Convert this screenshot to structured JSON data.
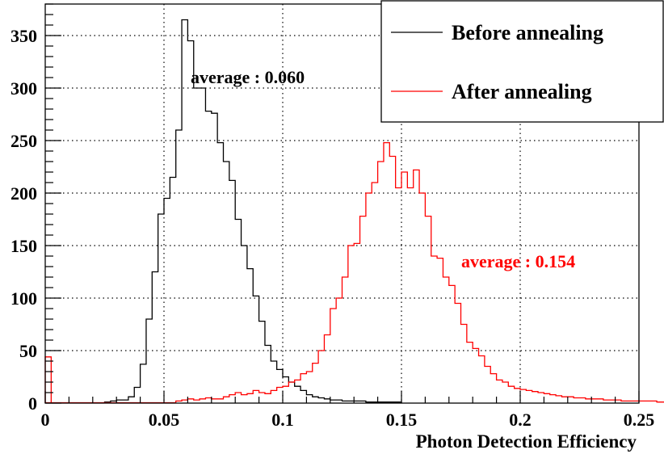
{
  "chart_data": {
    "type": "histogram",
    "xlabel": "Photon Detection Efficiency",
    "ylabel": "",
    "xlim": [
      0,
      0.25
    ],
    "ylim": [
      0,
      380
    ],
    "grid": true,
    "x_ticks": [
      "0",
      "0.05",
      "0.1",
      "0.15",
      "0.2",
      "0.25"
    ],
    "y_ticks": [
      "0",
      "50",
      "100",
      "150",
      "200",
      "250",
      "300",
      "350"
    ],
    "x_tick_values": [
      0,
      0.05,
      0.1,
      0.15,
      0.2,
      0.25
    ],
    "y_tick_values": [
      0,
      50,
      100,
      150,
      200,
      250,
      300,
      350
    ],
    "legend_position": "top-right",
    "bin_width": 0.0025,
    "series": [
      {
        "name": "Before annealing",
        "color": "#000000",
        "annotation": "average : 0.060",
        "bin_start": 0.025,
        "values": [
          1,
          2,
          3,
          3,
          6,
          15,
          37,
          80,
          125,
          180,
          195,
          215,
          260,
          365,
          345,
          300,
          300,
          278,
          276,
          248,
          230,
          212,
          175,
          150,
          128,
          102,
          78,
          55,
          40,
          32,
          25,
          20,
          16,
          12,
          8,
          6,
          5,
          4,
          3,
          3,
          2,
          2,
          2,
          2,
          1,
          1,
          1,
          1,
          1,
          1
        ]
      },
      {
        "name": "After annealing",
        "color": "#ff0000",
        "annotation": "average : 0.154",
        "bin_start": 0.055,
        "values": [
          2,
          3,
          4,
          3,
          4,
          5,
          4,
          4,
          6,
          8,
          10,
          8,
          9,
          12,
          10,
          9,
          12,
          15,
          16,
          20,
          22,
          28,
          30,
          38,
          50,
          65,
          90,
          100,
          120,
          150,
          152,
          178,
          200,
          210,
          230,
          248,
          235,
          205,
          220,
          205,
          222,
          200,
          178,
          140,
          138,
          120,
          112,
          95,
          75,
          58,
          52,
          45,
          35,
          28,
          22,
          20,
          16,
          14,
          13,
          12,
          11,
          10,
          9,
          8,
          7,
          6,
          6,
          5,
          5,
          4,
          4,
          4,
          3,
          3,
          3,
          2,
          2,
          2,
          2,
          2,
          2,
          1,
          1,
          1
        ]
      }
    ],
    "zero_bin_value": 44
  }
}
